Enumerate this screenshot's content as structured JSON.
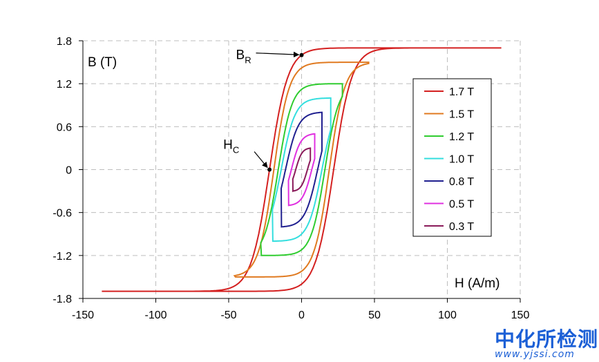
{
  "chart_data": {
    "type": "line",
    "xlabel": "H (A/m)",
    "ylabel": "B (T)",
    "xlim": [
      -150,
      150
    ],
    "ylim": [
      -1.8,
      1.8
    ],
    "x_ticks": [
      -150,
      -100,
      -50,
      0,
      50,
      100,
      150
    ],
    "y_ticks": [
      1.8,
      1.2,
      0.6,
      0,
      -0.6,
      -1.2,
      -1.8
    ],
    "x_tick_labels": [
      "-150",
      "-100",
      "-50",
      "0",
      "50",
      "100",
      "150"
    ],
    "y_tick_labels": [
      "1.8",
      "1.2",
      "0.6",
      "0",
      "-0.6",
      "-1.2",
      "-1.8"
    ],
    "grid": true,
    "legend_position": "right",
    "series": [
      {
        "name": "1.7 T",
        "color": "#d42020",
        "bmax": 1.7,
        "hmax": 137,
        "hc": 22,
        "br": 1.6
      },
      {
        "name": "1.5 T",
        "color": "#e07a20",
        "bmax": 1.5,
        "hmax": 46,
        "hc": 19,
        "br": 1.42
      },
      {
        "name": "1.2 T",
        "color": "#2fcc2f",
        "bmax": 1.2,
        "hmax": 28,
        "hc": 16,
        "br": 1.12
      },
      {
        "name": "1.0 T",
        "color": "#33dede",
        "bmax": 1.0,
        "hmax": 20,
        "hc": 14,
        "br": 0.9
      },
      {
        "name": "0.8 T",
        "color": "#1f1f8f",
        "bmax": 0.8,
        "hmax": 14,
        "hc": 11,
        "br": 0.68
      },
      {
        "name": "0.5 T",
        "color": "#e030e0",
        "bmax": 0.5,
        "hmax": 9,
        "hc": 7,
        "br": 0.4
      },
      {
        "name": "0.3 T",
        "color": "#8a1a5a",
        "bmax": 0.3,
        "hmax": 6,
        "hc": 4,
        "br": 0.22
      }
    ],
    "annotations": [
      {
        "label": "B",
        "sub": "R",
        "x": 0,
        "y": 1.6
      },
      {
        "label": "H",
        "sub": "C",
        "x": -22,
        "y": 0
      }
    ]
  },
  "watermark": {
    "text": "中化所检测",
    "url": "www.yjssi.com"
  }
}
